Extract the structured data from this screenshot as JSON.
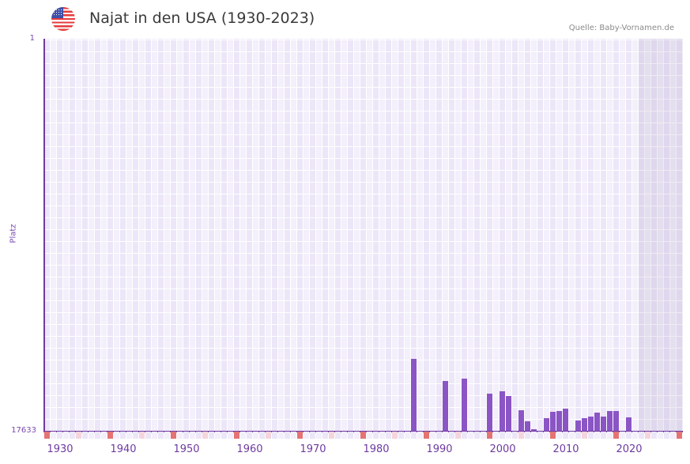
{
  "header": {
    "flag_icon": "us-flag-icon",
    "title": "Najat in den USA (1930-2023)",
    "source": "Quelle: Baby-Vornamen.de"
  },
  "axes": {
    "y_top_label": "1",
    "y_bottom_label": "17633",
    "y_axis_title": "Platz",
    "x_ticks": [
      "1930",
      "1940",
      "1950",
      "1960",
      "1970",
      "1980",
      "1990",
      "2000",
      "2010",
      "2020"
    ]
  },
  "colors": {
    "bar": "#8b55c5",
    "axis": "#6e3aa0",
    "decade_marker": "#e57373",
    "half_decade_marker": "#f5d5dd",
    "grid_a": "#ece6f8",
    "grid_b": "#f3effb",
    "future_shade": "#e2dcec"
  },
  "chart_data": {
    "type": "bar",
    "title": "Najat in den USA (1930-2023)",
    "xlabel": "",
    "ylabel": "Platz",
    "y_inverted": true,
    "ylim": [
      1,
      17633
    ],
    "xlim": [
      1928,
      2028
    ],
    "grid": true,
    "legend": null,
    "categories": [
      1986,
      1991,
      1994,
      1998,
      2000,
      2001,
      2003,
      2004,
      2005,
      2007,
      2008,
      2009,
      2010,
      2012,
      2013,
      2014,
      2015,
      2016,
      2017,
      2018,
      2020
    ],
    "values": [
      14398,
      15394,
      15287,
      15962,
      15856,
      16069,
      16709,
      17207,
      17562,
      17065,
      16781,
      16745,
      16638,
      17172,
      17065,
      16994,
      16816,
      16994,
      16745,
      16745,
      17030
    ],
    "annotations": [
      "Quelle: Baby-Vornamen.de"
    ]
  }
}
